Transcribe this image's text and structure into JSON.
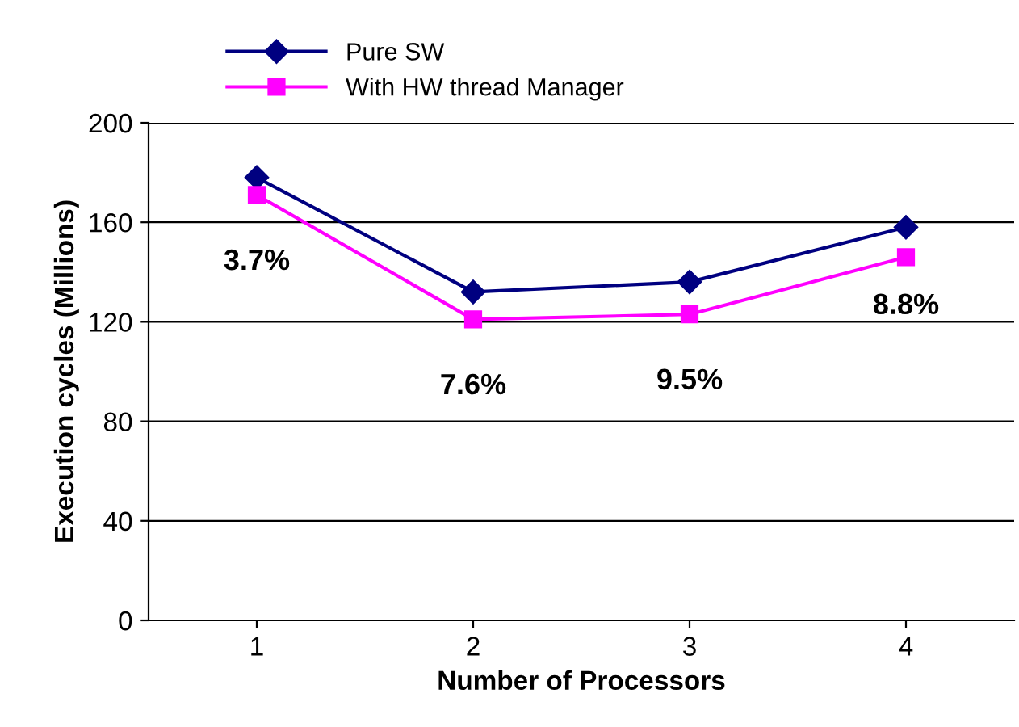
{
  "chart_data": {
    "type": "line",
    "xlabel": "Number of Processors",
    "ylabel": "Execution cycles (Millions)",
    "categories": [
      "1",
      "2",
      "3",
      "4"
    ],
    "series": [
      {
        "name": "Pure SW",
        "color": "#000080",
        "marker": "diamond",
        "values": [
          178,
          132,
          136,
          158
        ]
      },
      {
        "name": "With HW thread Manager",
        "color": "#ff00ff",
        "marker": "square",
        "values": [
          171,
          121,
          123,
          146
        ]
      }
    ],
    "ylim": [
      0,
      200
    ],
    "yticks": [
      0,
      40,
      80,
      120,
      160,
      200
    ],
    "grid": "y",
    "legend": "top",
    "line_style": "solid",
    "annotations": [
      "3.7%",
      "7.6%",
      "9.5%",
      "8.8%"
    ]
  }
}
